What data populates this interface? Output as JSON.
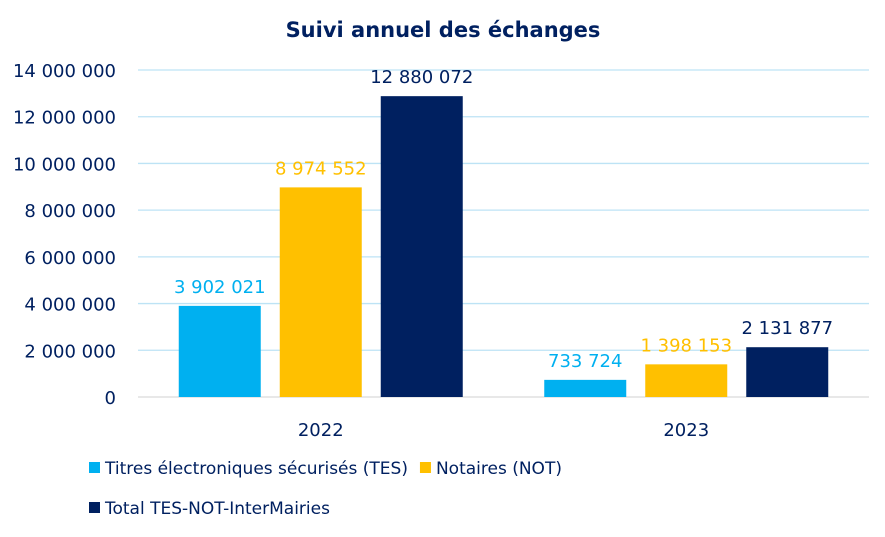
{
  "chart_data": {
    "type": "bar",
    "title": "Suivi annuel des échanges",
    "xlabel": "",
    "ylabel": "",
    "categories": [
      "2022",
      "2023"
    ],
    "series": [
      {
        "name": "Titres électroniques sécurisés (TES)",
        "color": "#00B0F0",
        "values": [
          3902021,
          733724
        ],
        "labels": [
          "3 902 021",
          "733 724"
        ]
      },
      {
        "name": "Notaires (NOT)",
        "color": "#FFC000",
        "values": [
          8974552,
          1398153
        ],
        "labels": [
          "8 974 552",
          "1 398 153"
        ]
      },
      {
        "name": "Total TES-NOT-InterMairies",
        "color": "#002060",
        "values": [
          12880072,
          2131877
        ],
        "labels": [
          "12 880 072",
          "2 131 877"
        ]
      }
    ],
    "ylim": [
      0,
      14000000
    ],
    "yticks": [
      0,
      2000000,
      4000000,
      6000000,
      8000000,
      10000000,
      12000000,
      14000000
    ],
    "ytick_labels": [
      "0",
      "2 000 000",
      "4 000 000",
      "6 000 000",
      "8 000 000",
      "10 000 000",
      "12 000 000",
      "14 000 000"
    ],
    "grid": true,
    "gridline_color": "#BDE3F5",
    "legend_position": "bottom-left",
    "text_color": "#002060"
  }
}
